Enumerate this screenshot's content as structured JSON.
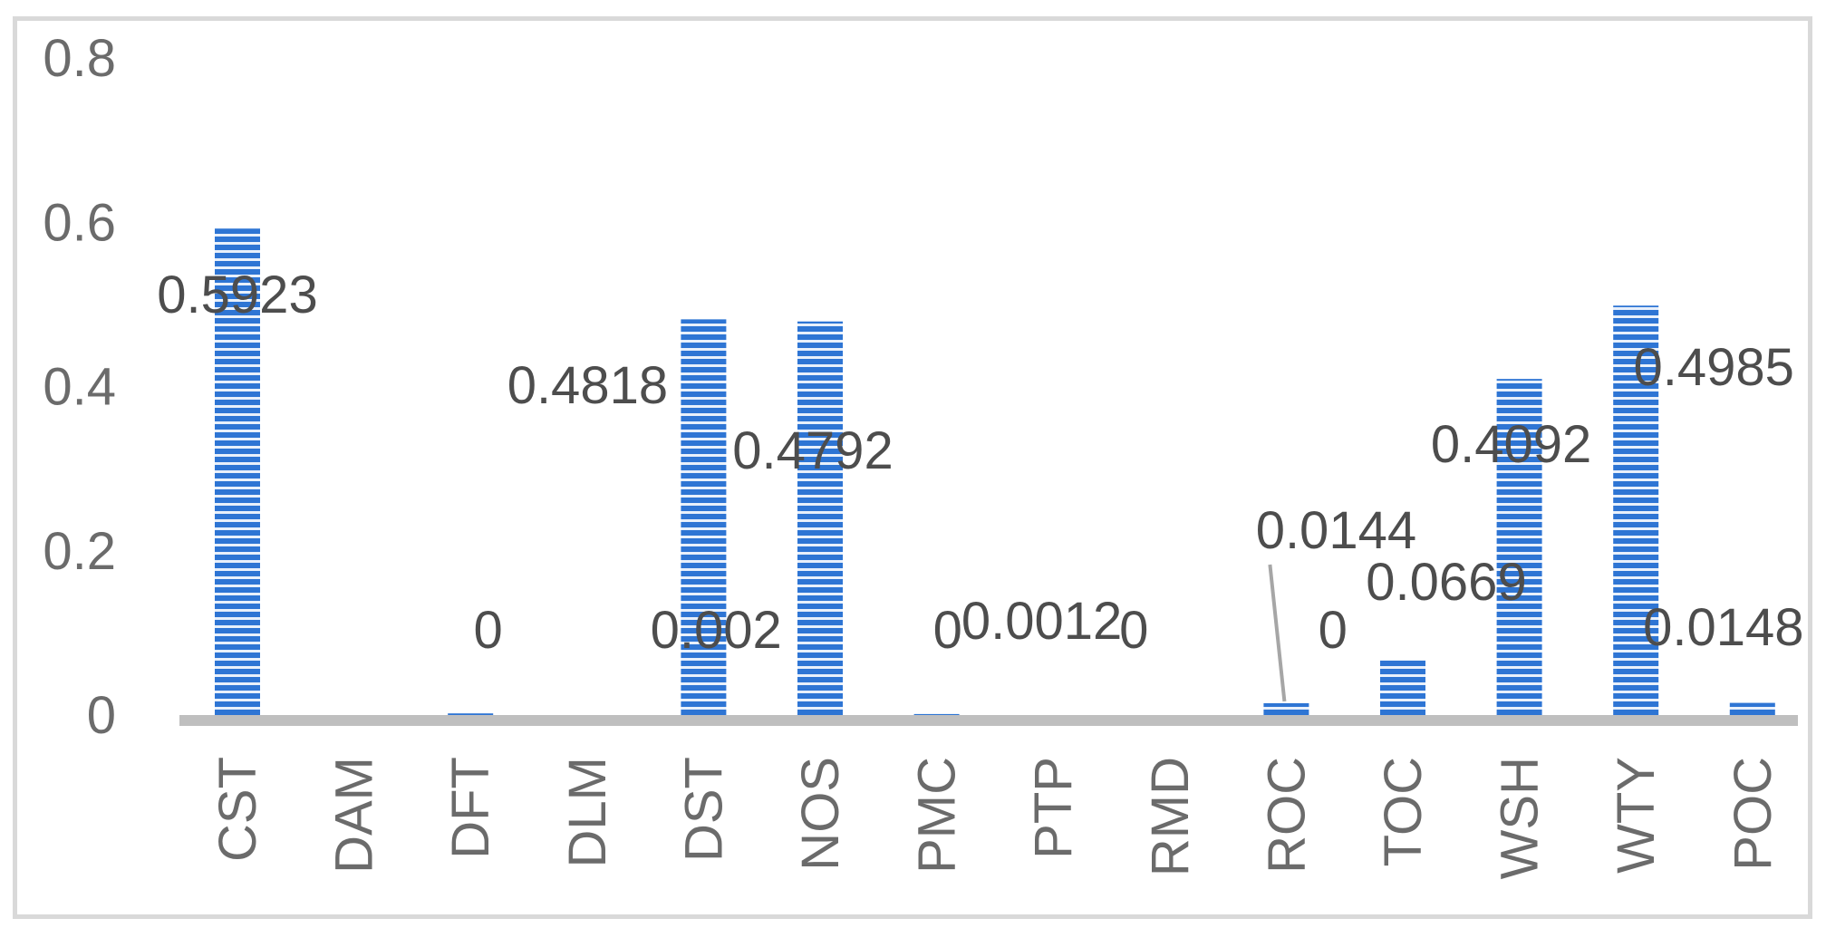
{
  "chart_data": {
    "type": "bar",
    "categories": [
      "CST",
      "DAM",
      "DFT",
      "DLM",
      "DST",
      "NOS",
      "PMC",
      "PTP",
      "RMD",
      "ROC",
      "TOC",
      "WSH",
      "WTY",
      "POC"
    ],
    "values": [
      0.5923,
      0,
      0.002,
      0,
      0.4818,
      0.4792,
      0.0012,
      0,
      0,
      0.0144,
      0.0669,
      0.4092,
      0.4985,
      0.0148
    ],
    "data_labels": [
      "0.5923",
      "0",
      "0.002",
      "0",
      "0.4818",
      "0.4792",
      "0.0012",
      "0",
      "0",
      "0.0144",
      "0.0669",
      "0.4092",
      "0.4985",
      "0.0148"
    ],
    "y_ticks": [
      "0",
      "0.2",
      "0.4",
      "0.6",
      "0.8"
    ],
    "ylim": [
      0,
      0.8
    ],
    "title": "",
    "xlabel": "",
    "ylabel": "",
    "grid": false,
    "legend": "none",
    "colors": {
      "bar": "#2e75d4",
      "bar_stripe": "#e8f0fb",
      "axis": "#bfbfbf",
      "frame": "#d9d9d9"
    }
  }
}
